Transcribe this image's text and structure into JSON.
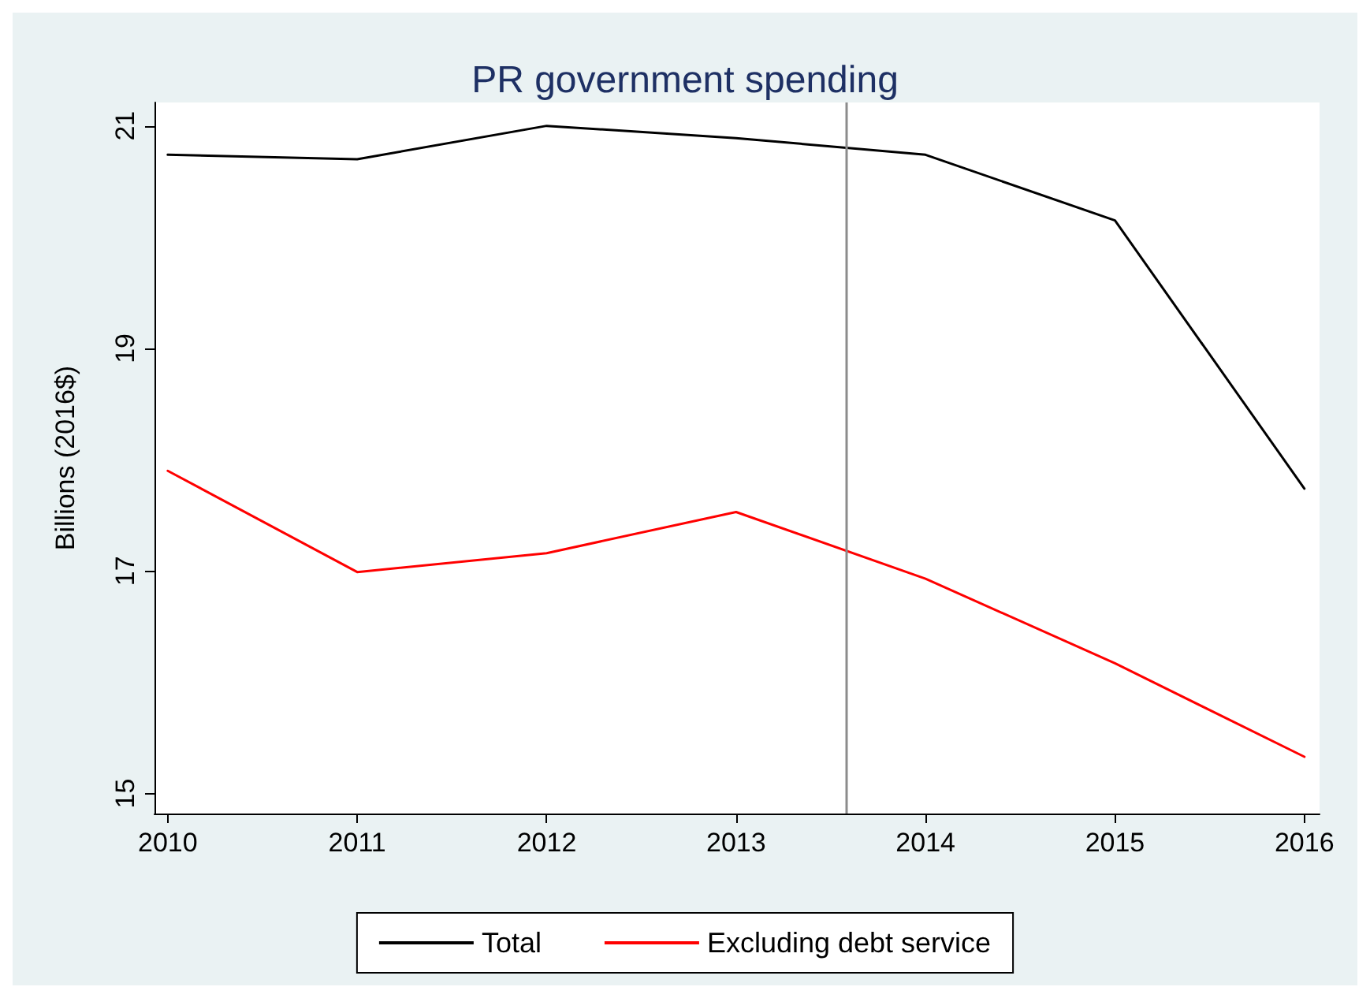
{
  "chart_data": {
    "type": "line",
    "title": "PR government spending",
    "ylabel": "Billions (2016$)",
    "x": [
      2010,
      2011,
      2012,
      2013,
      2014,
      2015,
      2016
    ],
    "series": [
      {
        "name": "Total",
        "color": "#000000",
        "values": [
          20.74,
          20.7,
          21.0,
          20.89,
          20.74,
          20.15,
          17.74
        ]
      },
      {
        "name": "Excluding debt service",
        "color": "#ff0000",
        "values": [
          17.9,
          16.99,
          17.16,
          17.53,
          16.93,
          16.17,
          15.33
        ]
      }
    ],
    "xlim": [
      2009.93,
      2016.08
    ],
    "xticks": [
      2010,
      2011,
      2012,
      2013,
      2014,
      2015,
      2016
    ],
    "ylim": [
      14.82,
      21.21
    ],
    "yticks": [
      15,
      17,
      19,
      21
    ],
    "ref_lines": [
      {
        "axis": "x",
        "value": 2013.58,
        "color": "#8c8c8c"
      }
    ],
    "grid": false,
    "legend": "bottom",
    "marker": "none",
    "line_style": "solid"
  }
}
